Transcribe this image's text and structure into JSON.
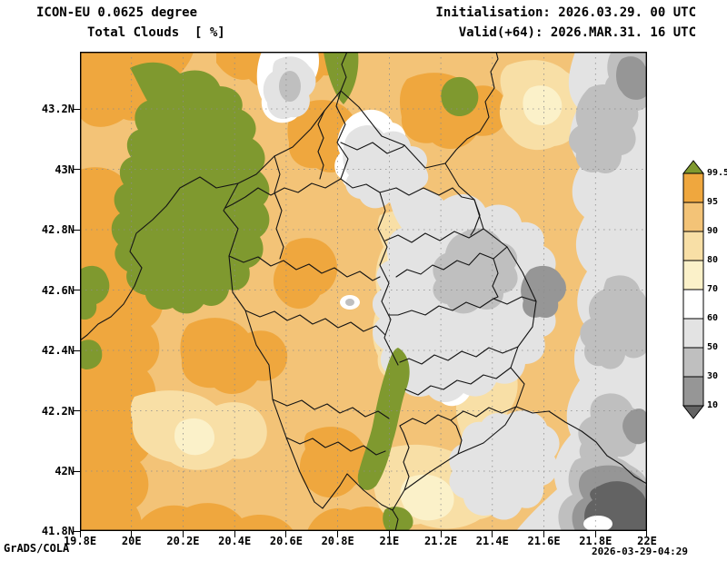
{
  "header": {
    "model": "ICON-EU 0.0625 degree",
    "variable": "Total Clouds  [ %]",
    "init": "Initialisation: 2026.03.29. 00 UTC",
    "valid": "Valid(+64): 2026.MAR.31. 16 UTC"
  },
  "footer": {
    "credit": "GrADS/COLA",
    "generated": "2026-03-29-04:29"
  },
  "axes": {
    "lat_ticks": [
      "43.2N",
      "43N",
      "42.8N",
      "42.6N",
      "42.4N",
      "42.2N",
      "42N",
      "41.8N"
    ],
    "lon_ticks": [
      "19.8E",
      "20E",
      "20.2E",
      "20.4E",
      "20.6E",
      "20.8E",
      "21E",
      "21.2E",
      "21.4E",
      "21.6E",
      "21.8E",
      "22E"
    ]
  },
  "colorbar": {
    "labels": [
      "99.5",
      "95",
      "90",
      "80",
      "70",
      "60",
      "50",
      "30",
      "10"
    ],
    "colors_top_to_bottom": [
      "#7f992f",
      "#efa73e",
      "#f3c377",
      "#f8dfa6",
      "#fbf1c9",
      "#ffffff",
      "#e3e3e3",
      "#bfbfbf",
      "#969696",
      "#636363"
    ]
  },
  "chart_data": {
    "type": "heatmap",
    "title": "Total Clouds [ %]",
    "model": "ICON-EU 0.0625 degree",
    "init_time": "2026.03.29. 00 UTC",
    "valid_time": "2026.MAR.31. 16 UTC",
    "lead_hours": 64,
    "units": "%",
    "lon_range": [
      19.8,
      22.0
    ],
    "lat_range": [
      41.8,
      43.39
    ],
    "contour_levels": [
      10,
      30,
      50,
      60,
      70,
      80,
      90,
      95,
      99.5
    ],
    "level_colors_low_to_high": [
      "#636363",
      "#969696",
      "#bfbfbf",
      "#e3e3e3",
      "#ffffff",
      "#fbf1c9",
      "#f8dfa6",
      "#f3c377",
      "#efa73e",
      "#7f992f"
    ],
    "grid_lons": [
      19.9,
      20.1,
      20.3,
      20.5,
      20.7,
      20.9,
      21.1,
      21.3,
      21.5,
      21.7,
      21.9
    ],
    "grid_lats": [
      43.3,
      43.1,
      42.9,
      42.7,
      42.5,
      42.3,
      42.1,
      41.9
    ],
    "values": [
      [
        96,
        99.8,
        98,
        93,
        55,
        92,
        96,
        99.8,
        93,
        75,
        45
      ],
      [
        98,
        99.8,
        99.8,
        96,
        55,
        75,
        88,
        93,
        85,
        70,
        55
      ],
      [
        99.8,
        99.8,
        97,
        93,
        96,
        90,
        75,
        65,
        55,
        60,
        50
      ],
      [
        99.8,
        96,
        93,
        96,
        93,
        85,
        65,
        45,
        40,
        55,
        45
      ],
      [
        97,
        93,
        90,
        96,
        90,
        75,
        55,
        40,
        30,
        45,
        40
      ],
      [
        96,
        90,
        85,
        93,
        96,
        99.8,
        85,
        65,
        45,
        40,
        25
      ],
      [
        96,
        96,
        90,
        85,
        93,
        99.8,
        78,
        60,
        45,
        35,
        25
      ],
      [
        93,
        96,
        88,
        90,
        96,
        99.8,
        90,
        70,
        50,
        40,
        8
      ]
    ],
    "grid": true,
    "colorbar_position": "right"
  }
}
